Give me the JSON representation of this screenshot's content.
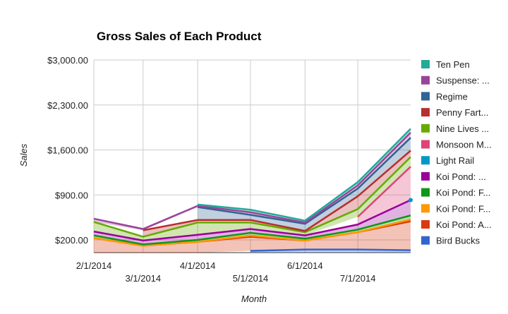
{
  "chart_data": {
    "type": "area",
    "stacked": true,
    "title": "Gross Sales of Each Product",
    "xlabel": "Month",
    "ylabel": "Sales",
    "ylim": [
      0,
      3000
    ],
    "y_ticks": [
      "$200.00",
      "$900.00",
      "$1,600.00",
      "$2,300.00",
      "$3,000.00"
    ],
    "y_tick_values": [
      200,
      900,
      1600,
      2300,
      3000
    ],
    "x_ticks": [
      "2/1/2014",
      "3/1/2014",
      "4/1/2014",
      "5/1/2014",
      "6/1/2014",
      "7/1/2014"
    ],
    "x_tick_values": [
      "2014-02-01",
      "2014-03-01",
      "2014-04-01",
      "2014-05-01",
      "2014-06-01",
      "2014-07-01"
    ],
    "x": [
      "2014-02-01",
      "2014-03-01",
      "2014-04-01",
      "2014-05-01",
      "2014-06-01",
      "2014-07-01",
      "2014-07-31"
    ],
    "x_range": [
      "2014-02-01",
      "2014-07-31"
    ],
    "grid": true,
    "legend_position": "right",
    "series": [
      {
        "name": "Bird Bucks",
        "color": "#3366cc",
        "values": [
          null,
          null,
          null,
          30,
          50,
          50,
          40
        ]
      },
      {
        "name": "Koi Pond: A...",
        "color": "#dc3912",
        "values": [
          230,
          110,
          170,
          220,
          140,
          270,
          450
        ]
      },
      {
        "name": "Koi Pond: F...",
        "color": "#ff9900",
        "values": [
          0,
          0,
          0,
          20,
          0,
          0,
          30
        ]
      },
      {
        "name": "Koi Pond: F...",
        "color": "#109618",
        "values": [
          40,
          20,
          30,
          40,
          30,
          40,
          60
        ]
      },
      {
        "name": "Koi Pond: ...",
        "color": "#990099",
        "values": [
          60,
          60,
          80,
          60,
          50,
          80,
          240
        ]
      },
      {
        "name": "Light Rail",
        "color": "#0099c6",
        "values": [
          null,
          null,
          null,
          null,
          null,
          null,
          0
        ]
      },
      {
        "name": "Monsoon M...",
        "color": "#dd4477",
        "values": [
          null,
          null,
          null,
          null,
          null,
          120,
          520
        ]
      },
      {
        "name": "Nine Lives ...",
        "color": "#66aa00",
        "values": [
          150,
          60,
          190,
          100,
          50,
          120,
          150
        ]
      },
      {
        "name": "Penny Fart...",
        "color": "#b82e2e",
        "values": [
          null,
          100,
          40,
          40,
          20,
          200,
          100
        ]
      },
      {
        "name": "Regime",
        "color": "#316395",
        "values": [
          null,
          null,
          200,
          80,
          110,
          120,
          200
        ]
      },
      {
        "name": "Suspense: ...",
        "color": "#994499",
        "values": [
          50,
          20,
          20,
          40,
          20,
          50,
          80
        ]
      },
      {
        "name": "Ten Pen",
        "color": "#22aa99",
        "values": [
          null,
          null,
          20,
          40,
          30,
          50,
          60
        ]
      }
    ],
    "legend_order": [
      "Ten Pen",
      "Suspense: ...",
      "Regime",
      "Penny Fart...",
      "Nine Lives ...",
      "Monsoon M...",
      "Light Rail",
      "Koi Pond: ...",
      "Koi Pond: F...",
      "Koi Pond: F...",
      "Koi Pond: A...",
      "Bird Bucks"
    ]
  }
}
